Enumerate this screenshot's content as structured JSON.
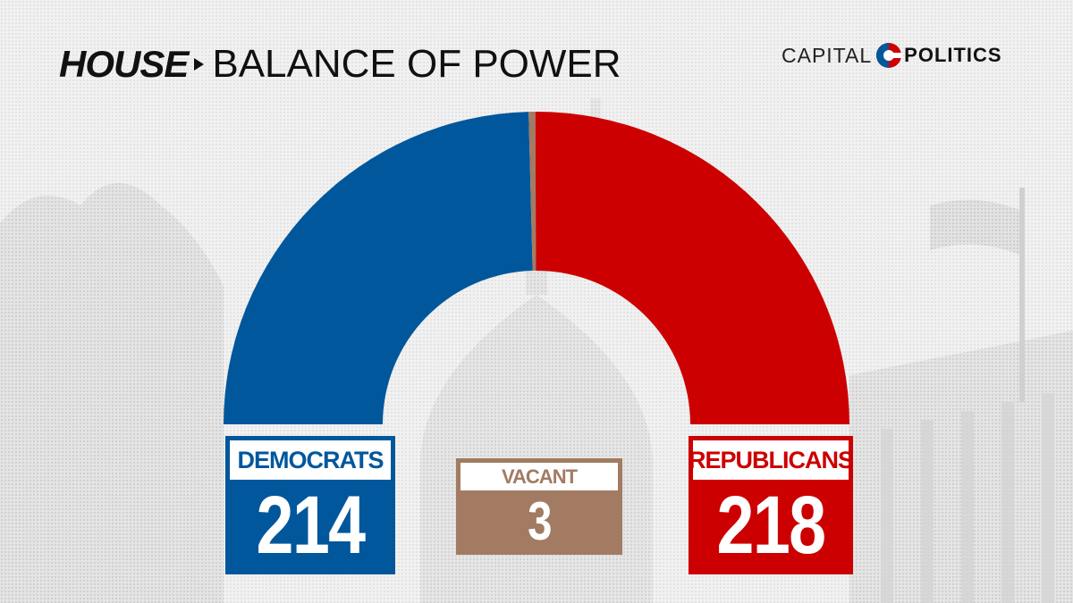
{
  "header": {
    "house_label": "HOUSE",
    "title": "BALANCE OF POWER"
  },
  "brand": {
    "prefix": "CAPITAL",
    "suffix": "POLITICS",
    "logo_icon": "capital-politics-logo"
  },
  "chart_data": {
    "type": "pie",
    "layout": "half-donut",
    "categories": [
      "DEMOCRATS",
      "VACANT",
      "REPUBLICANS"
    ],
    "values": [
      214,
      3,
      218
    ],
    "colors": [
      "#00579c",
      "#a27b62",
      "#cc0001"
    ]
  },
  "colors": {
    "background": "#efefef",
    "democrat": "#00579c",
    "vacant": "#a27b62",
    "republican": "#cc0001"
  }
}
